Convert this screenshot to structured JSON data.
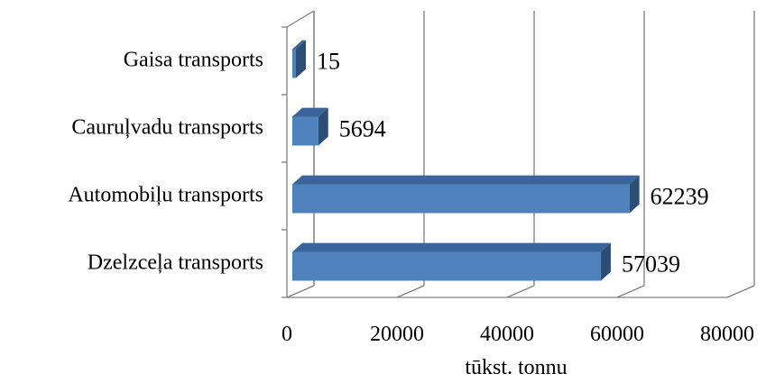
{
  "chart_data": {
    "type": "bar",
    "orientation": "horizontal",
    "three_d": true,
    "categories": [
      "Dzelzceļa transports",
      "Automobiļu transports",
      "Cauruļvadu transports",
      "Gaisa transports"
    ],
    "values": [
      57039,
      62239,
      5694,
      15
    ],
    "data_labels": [
      "57039",
      "62239",
      "5694",
      "15"
    ],
    "xlabel": "tūkst. tonnu",
    "ylabel": "",
    "title": "",
    "xlim": [
      0,
      80000
    ],
    "x_ticks": [
      0,
      20000,
      40000,
      60000,
      80000
    ],
    "x_tick_labels": [
      "0",
      "20000",
      "40000",
      "60000",
      "80000"
    ],
    "grid": true,
    "legend": "none",
    "colors": {
      "bar_front": "#4f81bd",
      "bar_top": "#3b659a",
      "bar_side": "#2c4d76",
      "grid": "#808080"
    }
  }
}
